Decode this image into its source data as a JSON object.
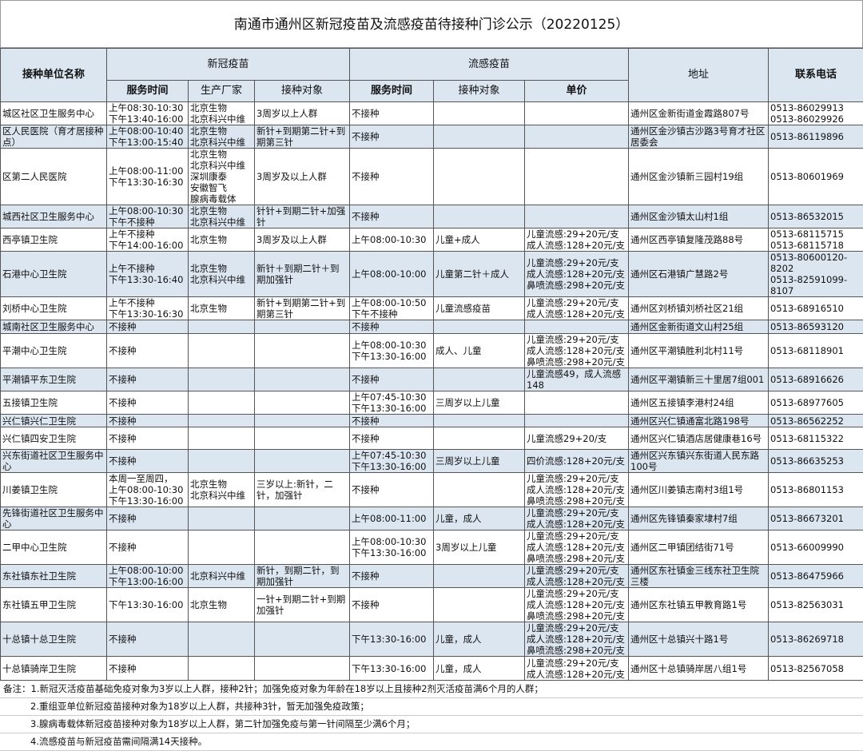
{
  "title": "南通市通州区新冠疫苗及流感疫苗待接种门诊公示（20220125）",
  "headers": {
    "unit": "接种单位名称",
    "covid": "新冠疫苗",
    "flu": "流感疫苗",
    "address": "地址",
    "phone": "联系电话",
    "covid_time": "服务时间",
    "maker": "生产厂家",
    "covid_target": "接种对象",
    "flu_time": "服务时间",
    "flu_target": "接种对象",
    "price": "单价"
  },
  "rows": [
    [
      "城区社区卫生服务中心",
      "上午08:30-10:30\n下午13:40-16:00",
      "北京生物\n北京科兴中维",
      "3周岁以上人群",
      "不接种",
      "",
      "",
      "通州区金新街道金霞路807号",
      "0513-86029913\n0513-86029926"
    ],
    [
      "区人民医院（育才居接种点）",
      "上午08:00-10:40\n下午13:00-15:40",
      "北京生物\n北京科兴中维",
      "新针+到期第二针+到期第三针",
      "不接种",
      "",
      "",
      "通州区金沙镇古沙路3号育才社区居委会",
      "0513-86119896"
    ],
    [
      "区第二人民医院",
      "上午08:00-11:00\n下午13:30-16:30",
      "北京生物\n北京科兴中维\n深圳康泰\n安徽智飞\n腺病毒载体",
      "3周岁及以上人群",
      "不接种",
      "",
      "",
      "通州区金沙镇新三园村19组",
      "0513-80601969"
    ],
    [
      "城西社区卫生服务中心",
      "上午08:00-10:30\n下午不接种",
      "北京生物\n北京科兴中维",
      "针针+到期二针+加强针",
      "不接种",
      "",
      "",
      "通州区金沙镇太山村1组",
      "0513-86532015"
    ],
    [
      "西亭镇卫生院",
      "上午不接种\n下午14:00-16:00",
      "北京生物",
      "3周岁及以上人群",
      "上午08:00-10:30",
      "儿童+成人",
      "儿童流感:29+20元/支\n成人流感:128+20元/支",
      "通州区西亭镇复隆茂路88号",
      "0513-68115715\n0513-68115718"
    ],
    [
      "石港中心卫生院",
      "上午不接种\n下午13:30-16:40",
      "北京生物\n北京科兴中维",
      "新针＋到期二针＋到期加强针",
      "上午08:00-10:00",
      "儿童第二针＋成人",
      "儿童流感:29+20元/支\n成人流感:128+20元/支\n鼻喷流感:298+20元/支",
      "通州区石港镇广慧路2号",
      "0513-80600120-8202\n0513-82591099-8107"
    ],
    [
      "刘桥中心卫生院",
      "上午不接种\n下午13:30-16:30",
      "北京生物",
      "新针+到期第二针+到期第三针",
      "上午08:00-10:50\n下午不接种",
      "儿童流感疫苗",
      "儿童流感:29+20元/支\n成人流感:128+20元/支",
      "通州区刘桥镇刘桥社区21组",
      "0513-68916510"
    ],
    [
      "城南社区卫生服务中心",
      "不接种",
      "",
      "",
      "不接种",
      "",
      "",
      "通州区金新街道文山村25组",
      "0513-86593120"
    ],
    [
      "平潮中心卫生院",
      "不接种",
      "",
      "",
      "上午08:00-10:30\n下午13:30-16:00",
      "成人、儿童",
      "儿童流感:29+20元/支\n成人流感:128+20元/支\n鼻喷流感:298+20元/支",
      "通州区平潮镇胜利北村11号",
      "0513-68118901"
    ],
    [
      "平潮镇平东卫生院",
      "不接种",
      "",
      "",
      "不接种",
      "",
      "儿童流感49，成人流感148",
      "通州区平潮镇新三十里居7组001",
      "0513-68916626"
    ],
    [
      "五接镇卫生院",
      "不接种",
      "",
      "",
      "上午07:45-10:30\n下午13:30-16:00",
      "三周岁以上儿童",
      "",
      "通州区五接镇李港村24组",
      "0513-68977605"
    ],
    [
      "兴仁镇兴仁卫生院",
      "不接种",
      "",
      "",
      "不接种",
      "",
      "",
      "通州区兴仁镇通富北路198号",
      "0513-86562252"
    ],
    [
      "兴仁镇四安卫生院",
      "不接种",
      "",
      "",
      "不接种",
      "",
      "儿童流感29+20/支",
      "通州区兴仁镇酒店居健康巷16号",
      "0513-68115322"
    ],
    [
      "兴东街道社区卫生服务中心",
      "不接种",
      "",
      "",
      "上午07:45-10:30\n下午13:30-16:00",
      "三周岁以上儿童",
      "四价流感:128+20元/支",
      "通州区兴东镇兴东街道人民东路100号",
      "0513-86635253"
    ],
    [
      "川姜镇卫生院",
      "本周一至周四，\n上午08:00-10:30\n下午13:30-16:00",
      "北京生物\n北京科兴中维",
      "三岁以上:新针，二针，加强针",
      "不接种",
      "",
      "儿童流感:29+20元/支\n成人流感:128+20元/支\n鼻喷流感:298+20元/支",
      "通州区川姜镇志南村3组1号",
      "0513-86801153"
    ],
    [
      "先锋街道社区卫生服务中心",
      "不接种",
      "",
      "",
      "上午08:00-11:00",
      "儿童，成人",
      "儿童流感:29+20元/支\n成人流感:128+20元/支",
      "通州区先锋镇秦家埭村7组",
      "0513-86673201"
    ],
    [
      "二甲中心卫生院",
      "不接种",
      "",
      "",
      "上午08:00-10:30\n下午13:30-16:00",
      "3周岁以上儿童",
      "儿童流感:29+20元/支\n成人流感:128+20元/支\n鼻喷流感:298+20元/支",
      "通州区二甲镇团结街71号",
      "0513-66009990"
    ],
    [
      "东社镇东社卫生院",
      "上午08:00-10:00\n下午13:00-16:00",
      "北京科兴中维",
      "新针，到期二针，到期加强针",
      "不接种",
      "",
      "儿童流感:29+20元/支\n成人流感:128+20元/支",
      "通州区东社镇金三线东社卫生院三楼",
      "0513-86475966"
    ],
    [
      "东社镇五甲卫生院",
      "下午13:30-16:00",
      "北京生物",
      "一针+到期二针+到期加强针",
      "不接种",
      "",
      "儿童流感:29+20元/支\n成人流感:128+20元/支\n鼻喷流感:298+20元/支",
      "通州区东社镇五甲教育路1号",
      "0513-82563031"
    ],
    [
      "十总镇十总卫生院",
      "不接种",
      "",
      "",
      "下午13:30-16:00",
      "儿童，成人",
      "儿童流感:29+20元/支\n成人流感:128+20元/支\n鼻喷流感:298+20元/支",
      "通州区十总镇兴十路1号",
      "0513-86269718"
    ],
    [
      "十总镇骑岸卫生院",
      "不接种",
      "",
      "",
      "下午13:30-16:00",
      "儿童，成人",
      "儿童流感:29+20元/支\n成人流感:128+20元/支",
      "通州区十总镇骑岸居八组1号",
      "0513-82567058"
    ]
  ],
  "notes": [
    "备注：1.新冠灭活疫苗基础免疫对象为3岁以上人群，接种2针；加强免疫对象为年龄在18岁以上且接种2剂灭活疫苗满6个月的人群；",
    "2.重组亚单位新冠疫苗接种对象为18岁以上人群，共接种3针，暂无加强免疫政策；",
    "3.腺病毒载体新冠疫苗接种对象为18岁以上人群，第二针加强免疫与第一针间隔至少满6个月；",
    "4.流感疫苗与新冠疫苗需间隔满14天接种。"
  ],
  "colors": {
    "header_bg": "#dce6f1",
    "alt_row_bg": "#dce6f1",
    "border": "#555555"
  }
}
